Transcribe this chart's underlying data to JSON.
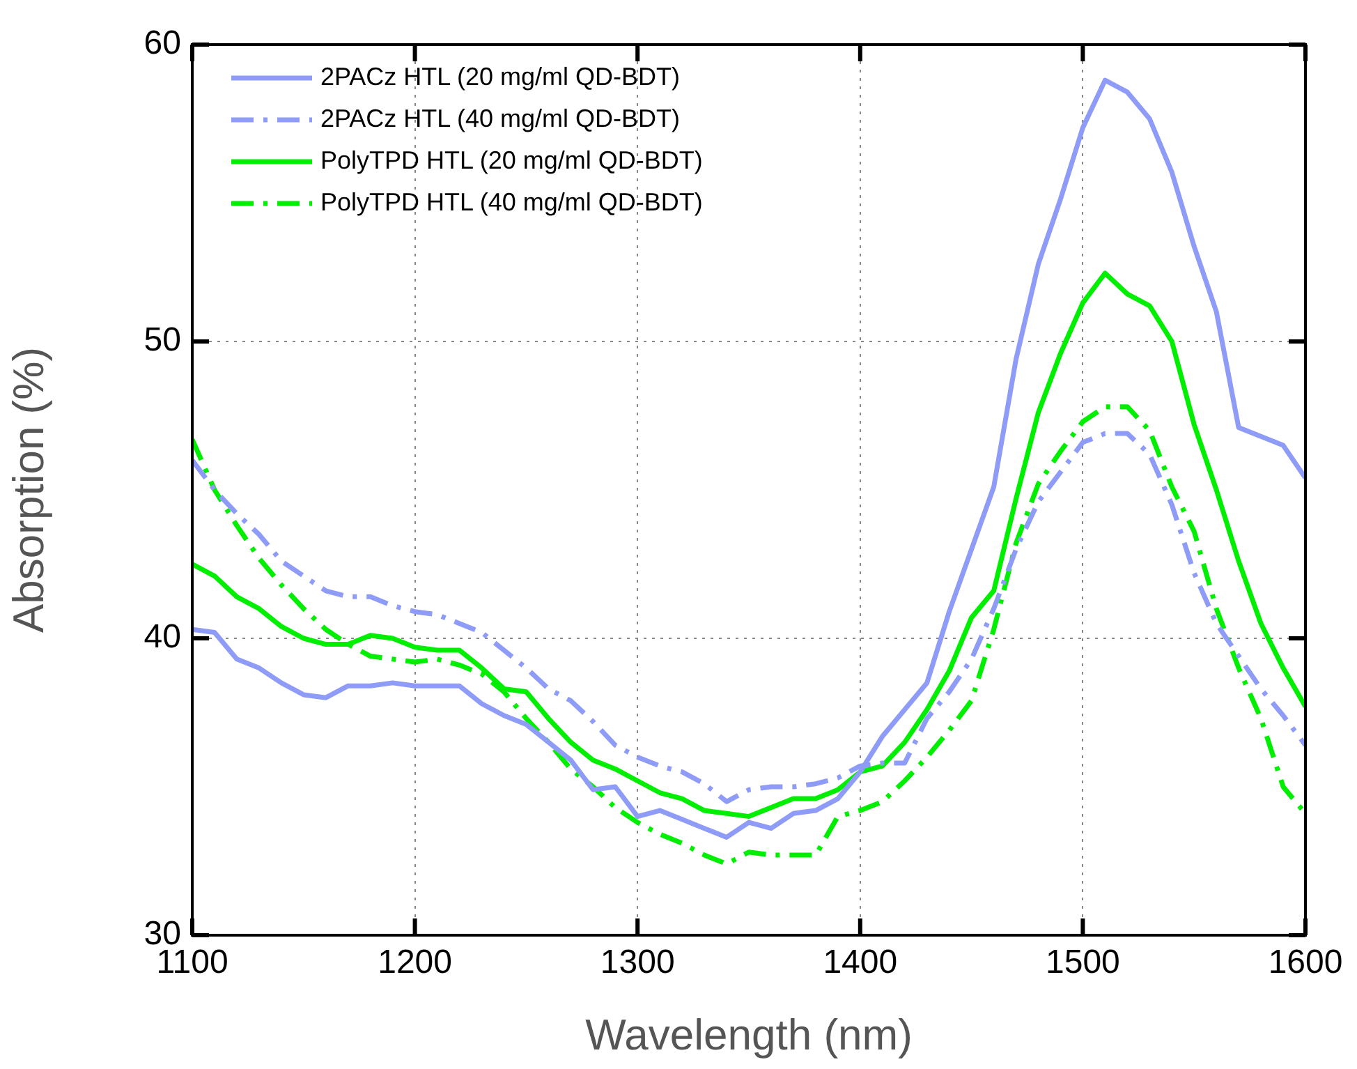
{
  "chart_data": {
    "type": "line",
    "xlabel": "Wavelength (nm)",
    "ylabel": "Absorption (%)",
    "x": [
      1100,
      1110,
      1120,
      1130,
      1140,
      1150,
      1160,
      1170,
      1180,
      1190,
      1200,
      1210,
      1220,
      1230,
      1240,
      1250,
      1260,
      1270,
      1280,
      1290,
      1300,
      1310,
      1320,
      1330,
      1340,
      1350,
      1360,
      1370,
      1380,
      1390,
      1400,
      1410,
      1420,
      1430,
      1440,
      1450,
      1460,
      1470,
      1480,
      1490,
      1500,
      1510,
      1520,
      1530,
      1540,
      1550,
      1560,
      1570,
      1580,
      1590,
      1600
    ],
    "xlim": [
      1100,
      1600
    ],
    "xticks": [
      1100,
      1200,
      1300,
      1400,
      1500,
      1600
    ],
    "ylim": [
      30,
      60
    ],
    "yticks": [
      30,
      40,
      50,
      60
    ],
    "grid": true,
    "legend": "top left",
    "marker": "none",
    "series": [
      {
        "name": "2PACz HTL (20 mg/ml QD-BDT)",
        "color": "#8f9cf7",
        "line_style": "solid",
        "values": [
          40.3,
          40.2,
          39.3,
          39.0,
          38.5,
          38.1,
          38.0,
          38.4,
          38.4,
          38.5,
          38.4,
          38.4,
          38.4,
          37.8,
          37.4,
          37.1,
          36.5,
          35.9,
          34.9,
          35.0,
          34.0,
          34.2,
          33.9,
          33.6,
          33.3,
          33.8,
          33.6,
          34.1,
          34.2,
          34.6,
          35.5,
          36.7,
          37.6,
          38.5,
          40.9,
          43.0,
          45.1,
          49.4,
          52.6,
          54.8,
          57.2,
          58.8,
          58.4,
          57.5,
          55.7,
          53.2,
          51.0,
          47.1,
          46.8,
          46.5,
          45.4
        ]
      },
      {
        "name": "2PACz HTL (40 mg/ml QD-BDT)",
        "color": "#8f9cf7",
        "line_style": "dashdot",
        "values": [
          46.0,
          45.0,
          44.2,
          43.5,
          42.6,
          42.1,
          41.6,
          41.4,
          41.4,
          41.1,
          40.9,
          40.8,
          40.5,
          40.2,
          39.6,
          39.0,
          38.3,
          37.9,
          37.2,
          36.4,
          36.0,
          35.7,
          35.5,
          35.1,
          34.5,
          34.9,
          35.0,
          35.0,
          35.1,
          35.3,
          35.7,
          35.8,
          35.8,
          37.3,
          38.2,
          39.3,
          41.0,
          43.0,
          44.6,
          45.6,
          46.6,
          46.9,
          46.9,
          46.2,
          44.5,
          42.2,
          40.5,
          39.4,
          38.3,
          37.4,
          36.4
        ]
      },
      {
        "name": "PolyTPD HTL (20 mg/ml QD-BDT)",
        "color": "#00ee00",
        "line_style": "solid",
        "values": [
          42.5,
          42.1,
          41.4,
          41.0,
          40.4,
          40.0,
          39.8,
          39.8,
          40.1,
          40.0,
          39.7,
          39.6,
          39.6,
          39.0,
          38.3,
          38.2,
          37.3,
          36.5,
          35.9,
          35.6,
          35.2,
          34.8,
          34.6,
          34.2,
          34.1,
          34.0,
          34.3,
          34.6,
          34.6,
          34.9,
          35.5,
          35.7,
          36.5,
          37.6,
          38.9,
          40.7,
          41.6,
          44.7,
          47.6,
          49.6,
          51.3,
          52.3,
          51.6,
          51.2,
          50.0,
          47.2,
          45.0,
          42.6,
          40.5,
          39.0,
          37.7
        ]
      },
      {
        "name": "PolyTPD HTL (40 mg/ml QD-BDT)",
        "color": "#00ee00",
        "line_style": "dashdot",
        "values": [
          46.7,
          45.0,
          43.8,
          42.7,
          41.8,
          41.0,
          40.3,
          39.8,
          39.4,
          39.3,
          39.2,
          39.3,
          39.1,
          38.8,
          38.2,
          37.3,
          36.5,
          35.6,
          35.0,
          34.3,
          33.8,
          33.4,
          33.1,
          32.7,
          32.4,
          32.8,
          32.7,
          32.7,
          32.7,
          34.0,
          34.2,
          34.5,
          35.2,
          36.0,
          36.9,
          37.9,
          40.3,
          43.2,
          45.2,
          46.3,
          47.3,
          47.8,
          47.8,
          47.0,
          45.1,
          43.6,
          41.0,
          39.0,
          37.3,
          35.0,
          34.1
        ]
      }
    ]
  }
}
